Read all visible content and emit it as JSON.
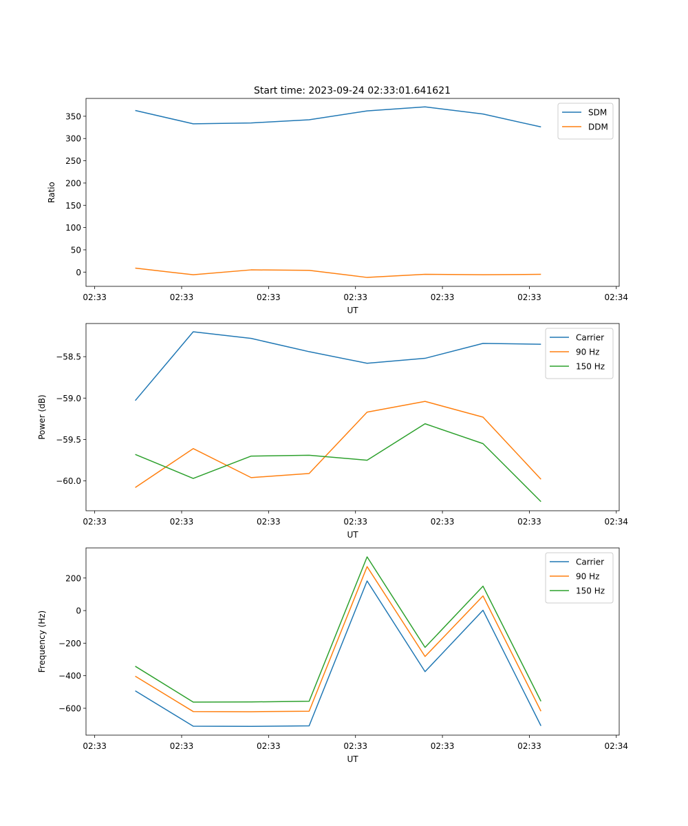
{
  "figure_title": "Start time: 2023-09-24 02:33:01.641621",
  "colors": {
    "blue": "#1f77b4",
    "orange": "#ff7f0e",
    "green": "#2ca02c"
  },
  "chart_data": [
    {
      "type": "line",
      "title": "Start time: 2023-09-24 02:33:01.641621",
      "xlabel": "UT",
      "ylabel": "Ratio",
      "x": [
        1,
        2,
        3,
        4,
        5,
        6,
        7,
        8
      ],
      "xlim": [
        0.15,
        9.35
      ],
      "ylim": [
        -32,
        390
      ],
      "xticks": [
        0.3,
        1.8,
        3.3,
        4.8,
        6.3,
        7.8,
        9.3
      ],
      "xtick_labels": [
        "02:33",
        "02:33",
        "02:33",
        "02:33",
        "02:33",
        "02:33",
        "02:34"
      ],
      "yticks": [
        0,
        50,
        100,
        150,
        200,
        250,
        300,
        350
      ],
      "ytick_labels": [
        "0",
        "50",
        "100",
        "150",
        "200",
        "250",
        "300",
        "350"
      ],
      "legend": "top-right",
      "series": [
        {
          "name": "SDM",
          "color": "#1f77b4",
          "values": [
            363,
            333,
            335,
            342,
            362,
            371,
            355,
            326
          ]
        },
        {
          "name": "DDM",
          "color": "#ff7f0e",
          "values": [
            9,
            -6,
            5,
            4,
            -12,
            -5,
            -6,
            -5
          ]
        }
      ]
    },
    {
      "type": "line",
      "title": "",
      "xlabel": "UT",
      "ylabel": "Power (dB)",
      "x": [
        1,
        2,
        3,
        4,
        5,
        6,
        7,
        8
      ],
      "xlim": [
        0.15,
        9.35
      ],
      "ylim": [
        -60.36,
        -58.1
      ],
      "xticks": [
        0.3,
        1.8,
        3.3,
        4.8,
        6.3,
        7.8,
        9.3
      ],
      "xtick_labels": [
        "02:33",
        "02:33",
        "02:33",
        "02:33",
        "02:33",
        "02:33",
        "02:34"
      ],
      "yticks": [
        -60.0,
        -59.5,
        -59.0,
        -58.5
      ],
      "ytick_labels": [
        "−60.0",
        "−59.5",
        "−59.0",
        "−58.5"
      ],
      "legend": "top-right",
      "series": [
        {
          "name": "Carrier",
          "color": "#1f77b4",
          "values": [
            -59.03,
            -58.2,
            -58.28,
            -58.44,
            -58.58,
            -58.52,
            -58.34,
            -58.35
          ]
        },
        {
          "name": "90 Hz",
          "color": "#ff7f0e",
          "values": [
            -60.08,
            -59.61,
            -59.96,
            -59.91,
            -59.17,
            -59.04,
            -59.23,
            -59.98
          ]
        },
        {
          "name": "150 Hz",
          "color": "#2ca02c",
          "values": [
            -59.68,
            -59.97,
            -59.7,
            -59.69,
            -59.75,
            -59.31,
            -59.55,
            -60.25
          ]
        }
      ]
    },
    {
      "type": "line",
      "title": "",
      "xlabel": "UT",
      "ylabel": "Frequency (Hz)",
      "x": [
        1,
        2,
        3,
        4,
        5,
        6,
        7,
        8
      ],
      "xlim": [
        0.15,
        9.35
      ],
      "ylim": [
        -765,
        385
      ],
      "xticks": [
        0.3,
        1.8,
        3.3,
        4.8,
        6.3,
        7.8,
        9.3
      ],
      "xtick_labels": [
        "02:33",
        "02:33",
        "02:33",
        "02:33",
        "02:33",
        "02:33",
        "02:34"
      ],
      "yticks": [
        -600,
        -400,
        -200,
        0,
        200
      ],
      "ytick_labels": [
        "−600",
        "−400",
        "−200",
        "0",
        "200"
      ],
      "legend": "top-right",
      "series": [
        {
          "name": "Carrier",
          "color": "#1f77b4",
          "values": [
            -493,
            -710,
            -711,
            -708,
            182,
            -375,
            2,
            -708
          ]
        },
        {
          "name": "90 Hz",
          "color": "#ff7f0e",
          "values": [
            -403,
            -620,
            -621,
            -618,
            270,
            -282,
            90,
            -618
          ]
        },
        {
          "name": "150 Hz",
          "color": "#2ca02c",
          "values": [
            -342,
            -562,
            -561,
            -557,
            330,
            -226,
            150,
            -557
          ]
        }
      ]
    }
  ]
}
